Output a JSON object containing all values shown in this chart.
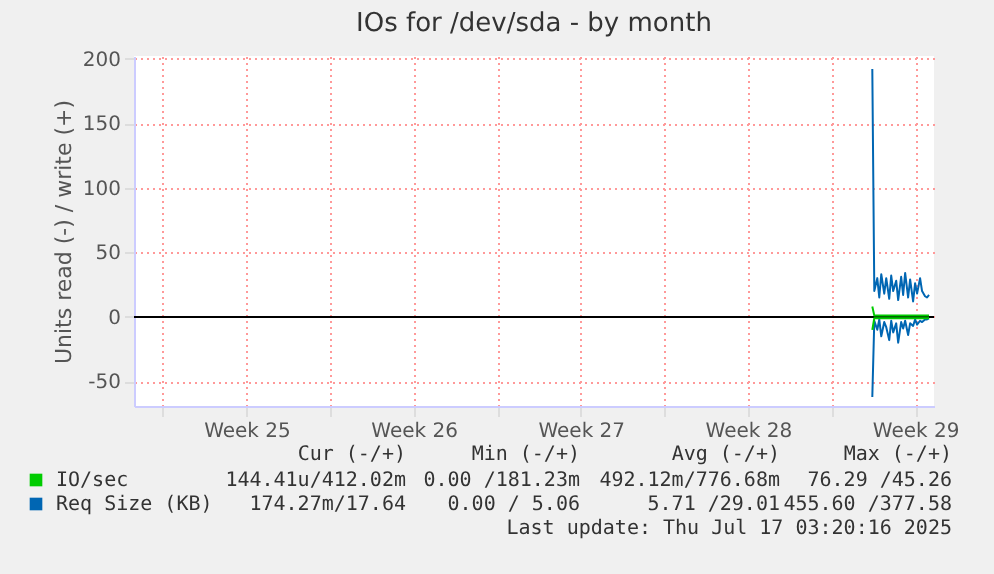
{
  "chart_data": {
    "type": "line",
    "title": "IOs for /dev/sda - by month",
    "ylabel": "Units read (-) / write (+)",
    "xlim": [
      "2025-06-14T19:00",
      "2025-07-18T07:00"
    ],
    "xticks": [
      {
        "value": "2025-06-16",
        "label": null
      },
      {
        "value": "2025-06-19T12:00",
        "label": "Week 25"
      },
      {
        "value": "2025-06-23",
        "label": null
      },
      {
        "value": "2025-06-26T12:00",
        "label": "Week 26"
      },
      {
        "value": "2025-06-30",
        "label": null
      },
      {
        "value": "2025-07-03T12:00",
        "label": "Week 27"
      },
      {
        "value": "2025-07-07",
        "label": null
      },
      {
        "value": "2025-07-10T12:00",
        "label": "Week 28"
      },
      {
        "value": "2025-07-14",
        "label": null
      },
      {
        "value": "2025-07-17T12:00",
        "label": "Week 29"
      }
    ],
    "ylim": [
      -69,
      202
    ],
    "yticks": [
      -50,
      0,
      50,
      100,
      150,
      200
    ],
    "grid": true,
    "legend": "bottom",
    "marker": "none",
    "line_style": "solid",
    "x": [
      "2025-07-15T17:00",
      "2025-07-15T19:00",
      "2025-07-15T22:00",
      "2025-07-16T00:00",
      "2025-07-16T02:00",
      "2025-07-16T05:00",
      "2025-07-16T07:00",
      "2025-07-16T10:00",
      "2025-07-16T12:00",
      "2025-07-16T14:00",
      "2025-07-16T17:00",
      "2025-07-16T19:00",
      "2025-07-16T22:00",
      "2025-07-17T00:00",
      "2025-07-17T02:00",
      "2025-07-17T05:00",
      "2025-07-17T07:00",
      "2025-07-17T10:00",
      "2025-07-17T12:00",
      "2025-07-17T14:00",
      "2025-07-17T17:00",
      "2025-07-17T19:00",
      "2025-07-17T22:00",
      "2025-07-18T00:00",
      "2025-07-18T02:00"
    ],
    "series": [
      {
        "name": "Req Size (KB)",
        "color": "#0066b3",
        "values": [
          192,
          20,
          30,
          15,
          33,
          18,
          30,
          14,
          32,
          20,
          28,
          13,
          31,
          17,
          34,
          15,
          29,
          12,
          26,
          18,
          30,
          20,
          16,
          15,
          17
        ]
      },
      {
        "color": "#0066b3",
        "values": [
          -62,
          -3,
          -10,
          -2,
          -15,
          -4,
          -8,
          -18,
          -3,
          -12,
          -5,
          -20,
          -4,
          -9,
          -3,
          -14,
          -5,
          -7,
          -2,
          -6,
          -3,
          -4,
          -2,
          -2,
          -1
        ]
      },
      {
        "name": "IO/sec",
        "color": "#00cc00",
        "values": [
          8,
          1,
          1,
          1,
          1,
          1,
          1,
          1,
          1,
          1,
          1,
          1,
          1,
          1,
          1,
          1,
          1,
          1,
          1,
          1,
          1,
          1,
          1,
          1,
          1
        ]
      },
      {
        "color": "#00cc00",
        "values": [
          -10,
          -1,
          -1,
          -1,
          -1,
          -1,
          -1,
          -1,
          -1,
          -1,
          -1,
          -1,
          -1,
          -1,
          -1,
          -1,
          -1,
          -1,
          -1,
          -1,
          -1,
          -1,
          -1,
          -1,
          -1
        ]
      }
    ],
    "ref_lines": [
      {
        "axis": "y",
        "value": 0,
        "color": "#000000"
      }
    ],
    "annotations": [
      "Cur (-/+)",
      "Min (-/+)",
      "Avg (-/+)",
      "Max (-/+)",
      "144.41u/412.02m",
      "0.00 /181.23m",
      "492.12m/776.68m",
      "76.29 /45.26",
      "174.27m/17.64",
      "0.00 / 5.06",
      "5.71 /29.01",
      "455.60 /377.58",
      "Last update: Thu Jul 17 03:20:16 2025"
    ]
  }
}
